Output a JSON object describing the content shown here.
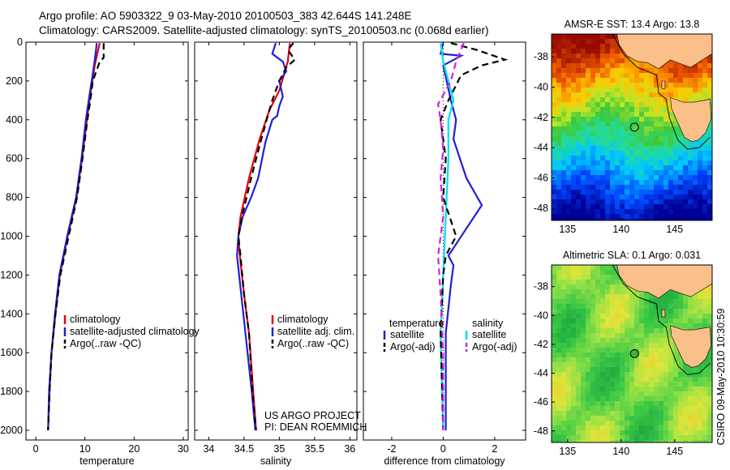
{
  "figure": {
    "title_line1": "Argo profile: AO 5903322_9 03-May-2010 20100503_383 42.644S 141.248E",
    "title_line2": "Climatology: CARS2009. Satellite-adjusted climatology: synTS_20100503.nc (0.068d earlier)",
    "credit": "CSIRO 09-May-2010 10:30:59",
    "project_line1": "US ARGO PROJECT",
    "project_line2": "PI: DEAN ROEMMICH"
  },
  "colors": {
    "climatology": "#e8000b",
    "satellite": "#1f1fd6",
    "argo": "#000000",
    "diff_sat_temp": "#1f1fd6",
    "diff_sat_sal": "#00e0e8",
    "diff_argo_sal": "#d21ee8",
    "land": "#fbbf8a"
  },
  "chart_data": [
    {
      "type": "line",
      "name_id": "temperature-panel",
      "xlabel": "temperature",
      "xlim": [
        -2,
        31
      ],
      "ylim": [
        2050,
        0
      ],
      "xticks": [
        "0",
        "10",
        "20",
        "30"
      ],
      "xtick_values": [
        0,
        10,
        20,
        30
      ],
      "yticks": [
        "0",
        "200",
        "400",
        "600",
        "800",
        "1000",
        "1200",
        "1400",
        "1600",
        "1800",
        "2000"
      ],
      "ytick_values": [
        0,
        200,
        400,
        600,
        800,
        1000,
        1200,
        1400,
        1600,
        1800,
        2000
      ],
      "legend": [
        "climatology",
        "satellite-adjusted climatology",
        "Argo(..raw -QC)"
      ],
      "legend_colors": [
        "#e8000b",
        "#1f1fd6",
        "#000000"
      ],
      "legend_dashed": [
        false,
        false,
        true
      ],
      "series": [
        {
          "style": "solid",
          "color": "#e8000b",
          "points": [
            [
              13.0,
              5
            ],
            [
              12.6,
              50
            ],
            [
              12.0,
              120
            ],
            [
              11.2,
              250
            ],
            [
              10.4,
              400
            ],
            [
              9.4,
              600
            ],
            [
              8.3,
              800
            ],
            [
              6.5,
              1000
            ],
            [
              4.9,
              1200
            ],
            [
              4.0,
              1400
            ],
            [
              3.2,
              1600
            ],
            [
              2.8,
              1800
            ],
            [
              2.5,
              2000
            ]
          ]
        },
        {
          "style": "solid",
          "color": "#1f1fd6",
          "points": [
            [
              12.4,
              5
            ],
            [
              12.2,
              50
            ],
            [
              11.8,
              130
            ],
            [
              11.0,
              260
            ],
            [
              10.2,
              400
            ],
            [
              9.3,
              600
            ],
            [
              8.2,
              800
            ],
            [
              6.4,
              1000
            ],
            [
              4.8,
              1200
            ],
            [
              3.9,
              1400
            ],
            [
              3.2,
              1600
            ],
            [
              2.7,
              1800
            ],
            [
              2.5,
              2000
            ]
          ]
        },
        {
          "style": "dashed",
          "color": "#000000",
          "points": [
            [
              13.8,
              5
            ],
            [
              13.8,
              80
            ],
            [
              13.0,
              100
            ],
            [
              12.6,
              130
            ],
            [
              11.6,
              200
            ],
            [
              11.2,
              280
            ],
            [
              10.5,
              400
            ],
            [
              9.5,
              600
            ],
            [
              8.4,
              800
            ],
            [
              6.7,
              1000
            ],
            [
              5.0,
              1200
            ],
            [
              4.0,
              1400
            ],
            [
              3.2,
              1600
            ],
            [
              2.8,
              1800
            ],
            [
              2.5,
              2000
            ]
          ]
        }
      ]
    },
    {
      "type": "line",
      "name_id": "salinity-panel",
      "xlabel": "salinity",
      "xlim": [
        33.8,
        36.1
      ],
      "ylim": [
        2050,
        0
      ],
      "xticks": [
        "34",
        "34.5",
        "35",
        "35.5",
        "36"
      ],
      "xtick_values": [
        34,
        34.5,
        35,
        35.5,
        36
      ],
      "legend": [
        "climatology",
        "satellite adj. clim.",
        "Argo(..raw -QC)"
      ],
      "legend_colors": [
        "#e8000b",
        "#1f1fd6",
        "#000000"
      ],
      "legend_dashed": [
        false,
        false,
        true
      ],
      "series": [
        {
          "style": "solid",
          "color": "#e8000b",
          "points": [
            [
              35.15,
              5
            ],
            [
              35.12,
              100
            ],
            [
              35.0,
              250
            ],
            [
              34.86,
              350
            ],
            [
              34.72,
              500
            ],
            [
              34.57,
              700
            ],
            [
              34.45,
              900
            ],
            [
              34.42,
              1000
            ],
            [
              34.44,
              1100
            ],
            [
              34.5,
              1300
            ],
            [
              34.57,
              1500
            ],
            [
              34.63,
              1800
            ],
            [
              34.67,
              2000
            ]
          ]
        },
        {
          "style": "solid",
          "color": "#1f1fd6",
          "points": [
            [
              34.95,
              5
            ],
            [
              34.9,
              60
            ],
            [
              35.05,
              100
            ],
            [
              35.1,
              150
            ],
            [
              35.0,
              200
            ],
            [
              35.05,
              280
            ],
            [
              35.0,
              330
            ],
            [
              34.97,
              380
            ],
            [
              34.9,
              400
            ],
            [
              34.8,
              520
            ],
            [
              34.7,
              700
            ],
            [
              34.6,
              800
            ],
            [
              34.48,
              900
            ],
            [
              34.42,
              1000
            ],
            [
              34.4,
              1100
            ],
            [
              34.43,
              1200
            ],
            [
              34.49,
              1400
            ],
            [
              34.55,
              1600
            ],
            [
              34.61,
              1800
            ],
            [
              34.66,
              2000
            ]
          ]
        },
        {
          "style": "dashed",
          "color": "#000000",
          "points": [
            [
              35.2,
              5
            ],
            [
              35.12,
              40
            ],
            [
              35.22,
              90
            ],
            [
              35.1,
              130
            ],
            [
              35.0,
              200
            ],
            [
              34.9,
              300
            ],
            [
              34.82,
              400
            ],
            [
              34.73,
              520
            ],
            [
              34.6,
              700
            ],
            [
              34.47,
              900
            ],
            [
              34.42,
              1000
            ],
            [
              34.45,
              1100
            ],
            [
              34.5,
              1300
            ],
            [
              34.57,
              1500
            ],
            [
              34.62,
              1800
            ],
            [
              34.67,
              2000
            ]
          ]
        }
      ]
    },
    {
      "type": "line",
      "name_id": "difference-panel",
      "xlabel": "difference from climatology",
      "xlim": [
        -3.1,
        3.2
      ],
      "ylim": [
        2050,
        0
      ],
      "xticks": [
        "-2",
        "0",
        "2"
      ],
      "xtick_values": [
        -2,
        0,
        2
      ],
      "legend_headers": [
        "temperature",
        "salinity"
      ],
      "legend_left": [
        "satellite",
        "Argo(-adj)"
      ],
      "legend_right": [
        "satellite",
        "Argo(-adj)"
      ],
      "legend_left_colors": [
        "#1f1fd6",
        "#000000"
      ],
      "legend_right_colors": [
        "#00e0e8",
        "#d21ee8"
      ],
      "series": [
        {
          "style": "dotted",
          "color": "#000000",
          "points": [
            [
              0,
              0
            ],
            [
              0,
              2000
            ]
          ]
        },
        {
          "style": "solid",
          "color": "#1f1fd6",
          "points": [
            [
              0.0,
              5
            ],
            [
              -0.1,
              60
            ],
            [
              0.7,
              70
            ],
            [
              0.0,
              120
            ],
            [
              0.3,
              300
            ],
            [
              0.5,
              400
            ],
            [
              0.4,
              500
            ],
            [
              0.9,
              700
            ],
            [
              1.5,
              840
            ],
            [
              0.2,
              1100
            ],
            [
              0.4,
              1150
            ],
            [
              0.3,
              1250
            ],
            [
              0.1,
              1500
            ],
            [
              0.1,
              2000
            ]
          ]
        },
        {
          "style": "solid",
          "color": "#00e0e8",
          "points": [
            [
              -0.1,
              5
            ],
            [
              0.0,
              100
            ],
            [
              0.2,
              200
            ],
            [
              0.4,
              300
            ],
            [
              0.2,
              400
            ],
            [
              0.2,
              600
            ],
            [
              0.1,
              900
            ],
            [
              0.0,
              1200
            ],
            [
              -0.1,
              1500
            ],
            [
              0.0,
              2000
            ]
          ]
        },
        {
          "style": "dashed",
          "color": "#000000",
          "points": [
            [
              0.3,
              5
            ],
            [
              1.3,
              40
            ],
            [
              2.4,
              90
            ],
            [
              1.5,
              120
            ],
            [
              0.7,
              170
            ],
            [
              0.2,
              300
            ],
            [
              -0.1,
              400
            ],
            [
              0.1,
              600
            ],
            [
              0.0,
              800
            ],
            [
              0.5,
              1000
            ],
            [
              0.1,
              1100
            ],
            [
              0.0,
              1200
            ],
            [
              -0.1,
              1500
            ],
            [
              0.0,
              2000
            ]
          ]
        },
        {
          "style": "dashed",
          "color": "#d21ee8",
          "points": [
            [
              0.8,
              5
            ],
            [
              0.5,
              100
            ],
            [
              0.3,
              200
            ],
            [
              -0.2,
              320
            ],
            [
              -0.1,
              400
            ],
            [
              0.0,
              550
            ],
            [
              -0.1,
              700
            ],
            [
              0.0,
              900
            ],
            [
              -0.2,
              1100
            ],
            [
              -0.1,
              1300
            ],
            [
              0.0,
              1600
            ],
            [
              0.0,
              2000
            ]
          ]
        }
      ]
    },
    {
      "type": "heatmap",
      "name_id": "sst-map",
      "title": "AMSR-E SST: 13.4 Argo: 13.8",
      "xlim": [
        133.5,
        148.5
      ],
      "ylim": [
        -48.8,
        -36.5
      ],
      "xticks": [
        "135",
        "140",
        "145"
      ],
      "xtick_values": [
        135,
        140,
        145
      ],
      "yticks": [
        "-38",
        "-40",
        "-42",
        "-44",
        "-46",
        "-48"
      ],
      "ytick_values": [
        -38,
        -40,
        -42,
        -44,
        -46,
        -48
      ],
      "marker": [
        141.248,
        -42.644
      ],
      "marker_fill": "none"
    },
    {
      "type": "heatmap",
      "name_id": "sla-map",
      "title": "Altimetric SLA: 0.1 Argo: 0.031",
      "xlim": [
        133.5,
        148.5
      ],
      "ylim": [
        -48.8,
        -36.5
      ],
      "xticks": [
        "135",
        "140",
        "145"
      ],
      "xtick_values": [
        135,
        140,
        145
      ],
      "yticks": [
        "-38",
        "-40",
        "-42",
        "-44",
        "-46",
        "-48"
      ],
      "ytick_values": [
        -38,
        -40,
        -42,
        -44,
        -46,
        -48
      ],
      "marker": [
        141.248,
        -42.644
      ],
      "marker_fill": "#3cb33c"
    }
  ]
}
